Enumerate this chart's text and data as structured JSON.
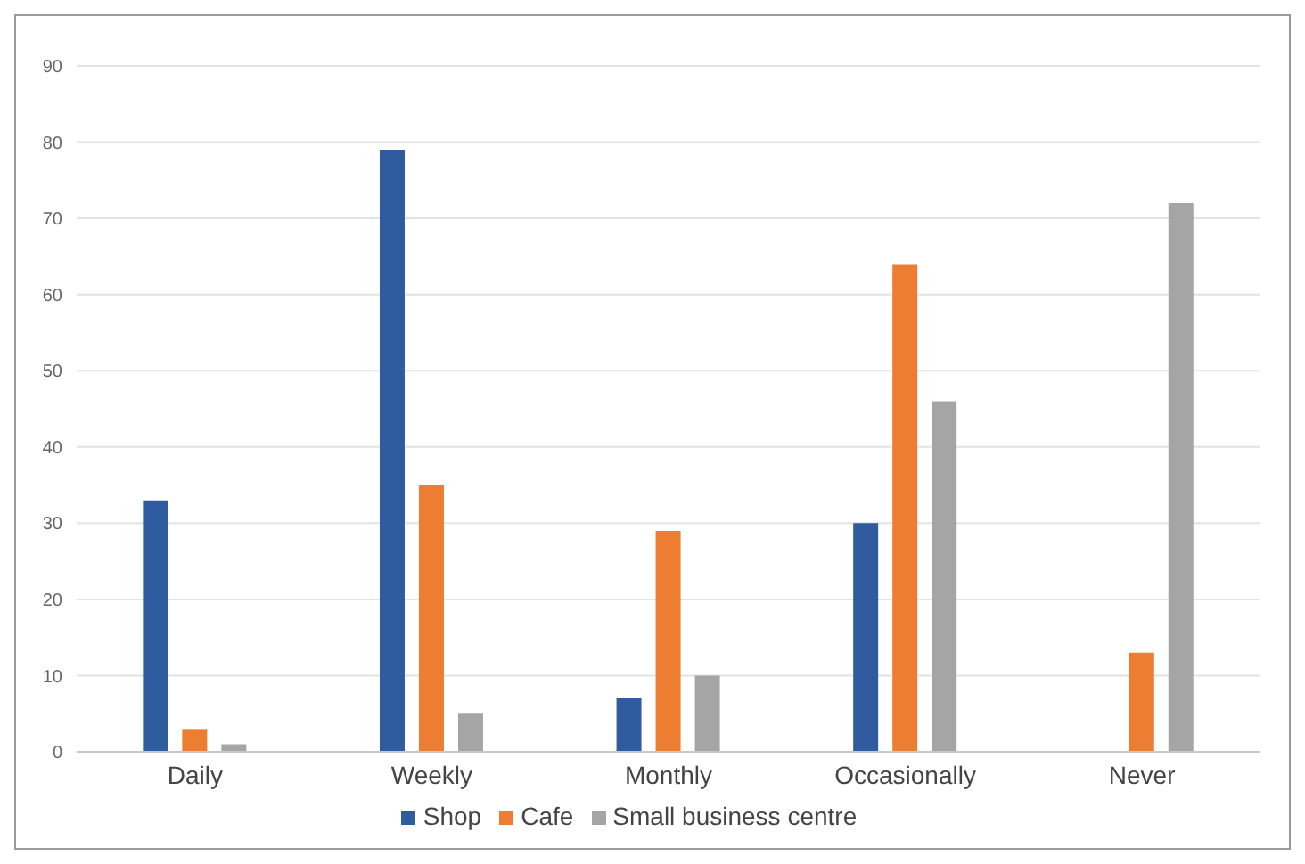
{
  "chart_data": {
    "type": "bar",
    "categories": [
      "Daily",
      "Weekly",
      "Monthly",
      "Occasionally",
      "Never"
    ],
    "series": [
      {
        "name": "Shop",
        "color": "#2e5c9e",
        "values": [
          33,
          79,
          7,
          30,
          0
        ]
      },
      {
        "name": "Cafe",
        "color": "#ed7d31",
        "values": [
          3,
          35,
          29,
          64,
          13
        ]
      },
      {
        "name": "Small business centre",
        "color": "#a5a5a5",
        "values": [
          1,
          5,
          10,
          46,
          72
        ]
      }
    ],
    "ylim": [
      0,
      90
    ],
    "yticks": [
      0,
      10,
      20,
      30,
      40,
      50,
      60,
      70,
      80,
      90
    ],
    "grid": "y",
    "legend": "bottom"
  }
}
